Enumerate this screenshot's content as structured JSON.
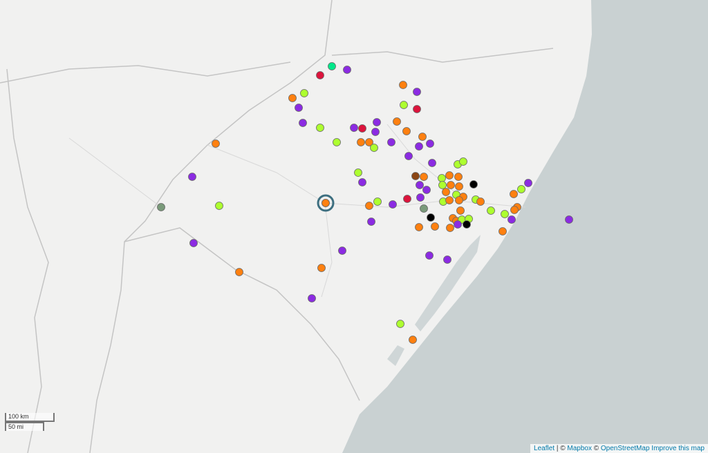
{
  "scale": {
    "km": "100 km",
    "mi": "50 mi"
  },
  "attribution": {
    "leaflet": "Leaflet",
    "separator": "| ©",
    "mapbox": "Mapbox",
    "copyright": "©",
    "osm": "OpenStreetMap",
    "improve": "Improve this map"
  }
}
